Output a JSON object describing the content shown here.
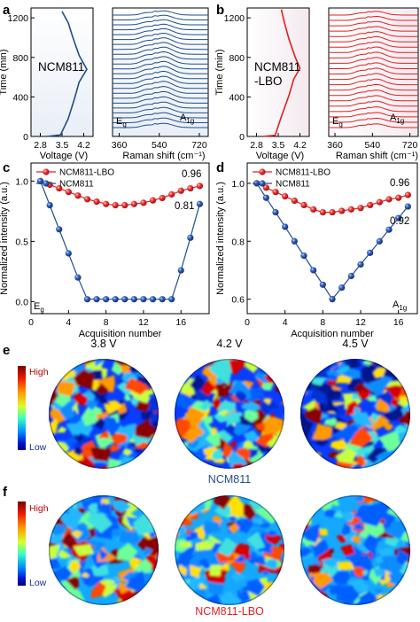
{
  "panels": {
    "a": "a",
    "b": "b",
    "c": "c",
    "d": "d",
    "e": "e",
    "f": "f"
  },
  "colors": {
    "ncm811": "#1f4e8c",
    "lbo": "#e02020",
    "ncm811_marker": "#2a55a0",
    "lbo_marker": "#e33030"
  },
  "chart_data": [
    {
      "id": "a_left",
      "type": "line",
      "series_label": "NCM811",
      "xlabel": "Voltage (V)",
      "ylabel": "Time (min)",
      "xlim": [
        2.5,
        4.5
      ],
      "ylim": [
        0,
        1300
      ],
      "xticks": [
        2.8,
        3.5,
        4.2
      ],
      "yticks": [
        0,
        400,
        800,
        1200
      ],
      "points": [
        [
          3.0,
          0
        ],
        [
          3.45,
          15
        ],
        [
          3.7,
          180
        ],
        [
          3.9,
          380
        ],
        [
          4.05,
          550
        ],
        [
          4.3,
          680
        ],
        [
          4.05,
          820
        ],
        [
          3.85,
          1000
        ],
        [
          3.7,
          1150
        ],
        [
          3.5,
          1265
        ]
      ]
    },
    {
      "id": "a_right",
      "type": "line",
      "xlabel": "Raman shift (cm⁻¹)",
      "xlim": [
        330,
        760
      ],
      "xticks": [
        360,
        540,
        720
      ],
      "peak_labels": [
        "E",
        "g",
        "A",
        "1g"
      ],
      "n_spectra": 24
    },
    {
      "id": "b_left",
      "type": "line",
      "series_label_line1": "NCM811",
      "series_label_line2": "-LBO",
      "xlabel": "Voltage (V)",
      "ylabel": "Time (min)",
      "xlim": [
        2.5,
        4.5
      ],
      "ylim": [
        0,
        1300
      ],
      "xticks": [
        2.8,
        3.5,
        4.2
      ],
      "yticks": [
        0,
        400,
        800,
        1200
      ],
      "points": [
        [
          3.0,
          0
        ],
        [
          3.4,
          12
        ],
        [
          3.6,
          200
        ],
        [
          3.85,
          420
        ],
        [
          4.0,
          580
        ],
        [
          4.2,
          690
        ],
        [
          4.05,
          800
        ],
        [
          3.85,
          980
        ],
        [
          3.7,
          1150
        ],
        [
          3.6,
          1285
        ]
      ]
    },
    {
      "id": "b_right",
      "type": "line",
      "xlabel": "Raman shift (cm⁻¹)",
      "xlim": [
        330,
        760
      ],
      "xticks": [
        360,
        540,
        720
      ],
      "peak_labels": [
        "E",
        "g",
        "A",
        "1g"
      ],
      "n_spectra": 22
    },
    {
      "id": "c",
      "type": "scatter",
      "xlabel": "Acquisition number",
      "ylabel": "Normalized intensity (a.u.)",
      "xlim": [
        0,
        19
      ],
      "ylim": [
        -0.1,
        1.15
      ],
      "xticks": [
        0,
        4,
        8,
        12,
        16
      ],
      "yticks": [
        0.0,
        0.5,
        1.0
      ],
      "ytick_labels": [
        "0.0",
        "0.5",
        "1.0"
      ],
      "corner_label": [
        "E",
        "g"
      ],
      "series": [
        {
          "name": "NCM811-LBO",
          "end_label": "0.96",
          "x": [
            1,
            2,
            3,
            4,
            5,
            6,
            7,
            8,
            9,
            10,
            11,
            12,
            13,
            14,
            15,
            16,
            17,
            18
          ],
          "y": [
            1.0,
            0.97,
            0.94,
            0.91,
            0.88,
            0.85,
            0.83,
            0.81,
            0.8,
            0.8,
            0.81,
            0.82,
            0.84,
            0.86,
            0.89,
            0.92,
            0.94,
            0.96
          ]
        },
        {
          "name": "NCM811",
          "end_label": "0.81",
          "x": [
            1,
            2,
            3,
            4,
            5,
            6,
            7,
            8,
            9,
            10,
            11,
            12,
            13,
            14,
            15,
            16,
            17,
            18
          ],
          "y": [
            1.0,
            0.8,
            0.6,
            0.4,
            0.2,
            0.02,
            0.02,
            0.02,
            0.02,
            0.02,
            0.02,
            0.02,
            0.02,
            0.02,
            0.02,
            0.26,
            0.53,
            0.81
          ]
        }
      ]
    },
    {
      "id": "d",
      "type": "scatter",
      "xlabel": "Acquisition number",
      "ylabel": "Normalized intensity (a.u.)",
      "xlim": [
        0,
        18
      ],
      "ylim": [
        0.55,
        1.07
      ],
      "xticks": [
        0,
        4,
        8,
        12,
        16
      ],
      "yticks": [
        0.6,
        0.8,
        1.0
      ],
      "ytick_labels": [
        "0.6",
        "0.8",
        "1.0"
      ],
      "corner_label": [
        "A",
        "1g"
      ],
      "series": [
        {
          "name": "NCM811-LBO",
          "end_label": "0.96",
          "x": [
            1,
            2,
            3,
            4,
            5,
            6,
            7,
            8,
            9,
            10,
            11,
            12,
            13,
            14,
            15,
            16,
            17
          ],
          "y": [
            1.0,
            0.985,
            0.97,
            0.955,
            0.94,
            0.925,
            0.91,
            0.9,
            0.9,
            0.905,
            0.91,
            0.915,
            0.925,
            0.935,
            0.945,
            0.95,
            0.96
          ]
        },
        {
          "name": "NCM811",
          "end_label": "0.92",
          "x": [
            1,
            2,
            3,
            4,
            5,
            6,
            7,
            8,
            9,
            10,
            11,
            12,
            13,
            14,
            15,
            16,
            17
          ],
          "y": [
            1.0,
            0.95,
            0.9,
            0.85,
            0.8,
            0.75,
            0.7,
            0.65,
            0.6,
            0.64,
            0.68,
            0.72,
            0.76,
            0.8,
            0.84,
            0.88,
            0.92
          ]
        }
      ]
    }
  ],
  "maps": {
    "e": {
      "voltages": [
        "3.8 V",
        "4.2 V",
        "4.5 V"
      ],
      "colorbar_high": "High",
      "colorbar_low": "Low",
      "caption": "NCM811"
    },
    "f": {
      "colorbar_high": "High",
      "colorbar_low": "Low",
      "caption": "NCM811-LBO"
    }
  }
}
